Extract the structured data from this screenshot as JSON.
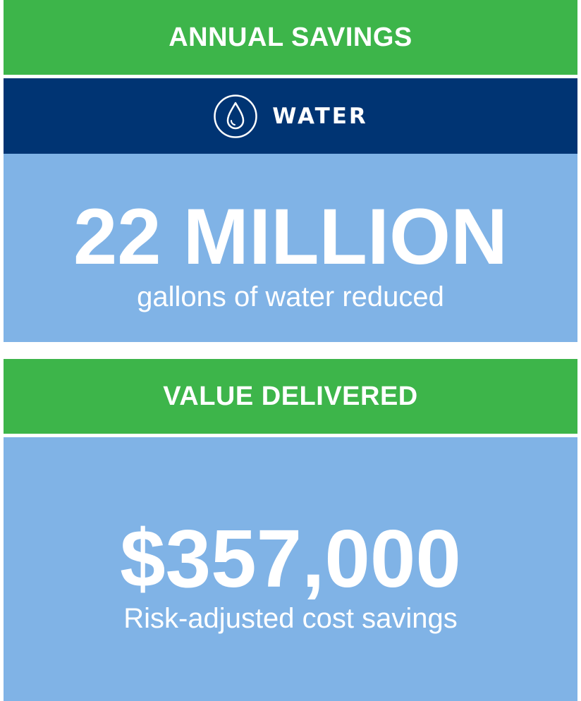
{
  "annual_savings": {
    "heading": "ANNUAL SAVINGS"
  },
  "water": {
    "label": "WATER",
    "icon": "water-drop-icon",
    "figure": "22 MILLION",
    "caption": "gallons of water reduced"
  },
  "value_delivered": {
    "heading": "VALUE DELIVERED",
    "figure": "$357,000",
    "caption": "Risk-adjusted cost savings"
  },
  "colors": {
    "green": "#3db54a",
    "navy": "#003473",
    "light_blue": "#80b3e6",
    "text": "#ffffff"
  }
}
